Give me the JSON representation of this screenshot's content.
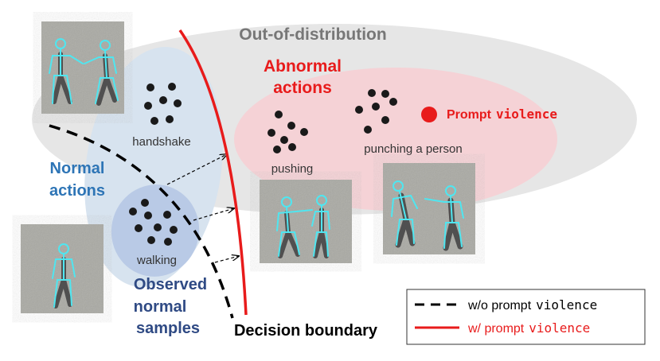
{
  "regions": {
    "ood_title": "Out-of-distribution",
    "abnormal_line1": "Abnormal",
    "abnormal_line2": "actions",
    "normal_line1": "Normal",
    "normal_line2": "actions",
    "observed_line1": "Observed",
    "observed_line2": "normal",
    "observed_line3": "samples"
  },
  "clusters": {
    "handshake": "handshake",
    "walking": "walking",
    "pushing": "pushing",
    "punching": "punching a person"
  },
  "prompt": {
    "label": "Prompt",
    "keyword": "violence"
  },
  "boundary_label": "Decision boundary",
  "legend": {
    "dashed_prefix": "w/o prompt",
    "dashed_keyword": "violence",
    "solid_prefix": "w/ prompt",
    "solid_keyword": "violence"
  },
  "colors": {
    "ood_region": "#e6e6e6",
    "abnormal_region": "#f5d2d6",
    "normal_region": "#d7e3ef",
    "observed_region": "#b9cae6",
    "normal_text": "#2e75b6",
    "observed_text": "#2f4a84",
    "abnormal_text": "#e81b1b",
    "boundary_solid": "#e81b1b",
    "boundary_dashed": "#000000",
    "skeleton": "#4fe6f0",
    "photo_bg": "#a9a9a3"
  }
}
